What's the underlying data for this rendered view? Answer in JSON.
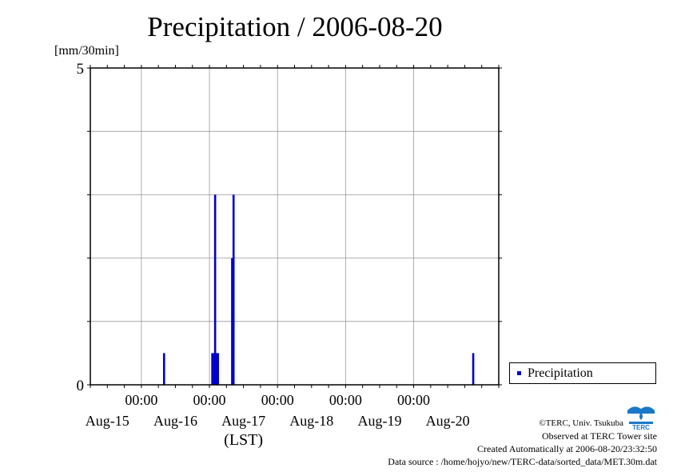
{
  "title": "Precipitation / 2006-08-20",
  "y_unit": "[mm/30min]",
  "x_axis_label": "(LST)",
  "legend": {
    "label": "Precipitation"
  },
  "colors": {
    "bar": "#0000cc",
    "grid": "#999999",
    "axis": "#000000"
  },
  "credits": {
    "copyright": "©TERC, Univ. Tsukuba",
    "site": "Observed at TERC Tower site",
    "created": "Created Automatically at 2006-08-20/23:32:50",
    "source": "Data source : /home/hojyo/new/TERC-data/sorted_data/MET.30m.dat"
  },
  "logo": {
    "icon": "terc-logo-icon",
    "text": "TERC"
  },
  "chart_data": {
    "type": "bar",
    "title": "Precipitation / 2006-08-20",
    "ylabel": "[mm/30min]",
    "xlabel": "(LST)",
    "ylim": [
      0,
      5
    ],
    "y_tick_labels": [
      "0",
      "5"
    ],
    "y_gridlines": [
      1,
      2,
      3,
      4
    ],
    "x_range_hours": [
      -18,
      126
    ],
    "x_ticks": [
      {
        "hour": 0,
        "time": "00:00",
        "date": "Aug-16"
      },
      {
        "hour": 24,
        "time": "00:00",
        "date": "Aug-17"
      },
      {
        "hour": 48,
        "time": "00:00",
        "date": "Aug-18"
      },
      {
        "hour": 72,
        "time": "00:00",
        "date": "Aug-19"
      },
      {
        "hour": 96,
        "time": "00:00",
        "date": "Aug-20"
      }
    ],
    "x_date_labels": [
      {
        "hour": -12,
        "label": "Aug-15"
      },
      {
        "hour": 12,
        "label": "Aug-16"
      },
      {
        "hour": 36,
        "label": "Aug-17"
      },
      {
        "hour": 60,
        "label": "Aug-18"
      },
      {
        "hour": 84,
        "label": "Aug-19"
      },
      {
        "hour": 108,
        "label": "Aug-20"
      }
    ],
    "grid": true,
    "legend_position": "right",
    "series": [
      {
        "name": "Precipitation",
        "x_hours": [
          8,
          25,
          25.5,
          26,
          26.5,
          27,
          32,
          32.5,
          117
        ],
        "values": [
          0.5,
          0.5,
          0.5,
          3.0,
          0.5,
          0.5,
          2.0,
          3.0,
          0.5
        ]
      }
    ]
  }
}
